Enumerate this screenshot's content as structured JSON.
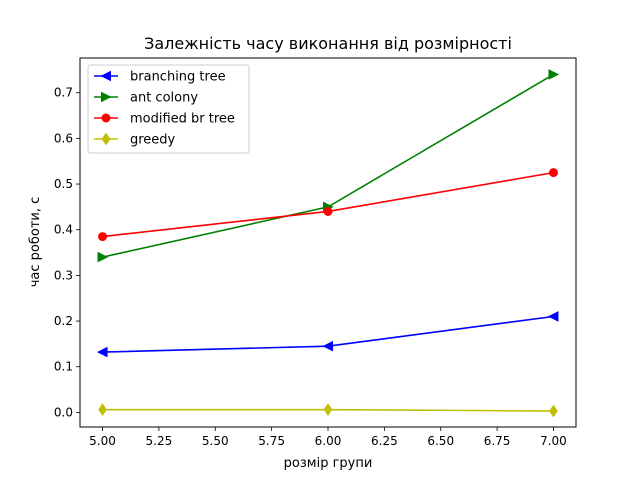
{
  "chart_data": {
    "type": "line",
    "title": "Залежність часу виконання від розмірності",
    "xlabel": "розмір групи",
    "ylabel": "час роботи, с",
    "xlim": [
      4.9,
      7.1
    ],
    "ylim": [
      -0.032,
      0.776
    ],
    "xticks": [
      5.0,
      5.25,
      5.5,
      5.75,
      6.0,
      6.25,
      6.5,
      6.75,
      7.0
    ],
    "xtick_labels": [
      "5.00",
      "5.25",
      "5.50",
      "5.75",
      "6.00",
      "6.25",
      "6.50",
      "6.75",
      "7.00"
    ],
    "yticks": [
      0.0,
      0.1,
      0.2,
      0.3,
      0.4,
      0.5,
      0.6,
      0.7
    ],
    "ytick_labels": [
      "0.0",
      "0.1",
      "0.2",
      "0.3",
      "0.4",
      "0.5",
      "0.6",
      "0.7"
    ],
    "grid": false,
    "legend_position": "top-left",
    "x": [
      5,
      6,
      7
    ],
    "series": [
      {
        "name": "branching tree",
        "values": [
          0.132,
          0.145,
          0.21
        ],
        "color": "#0000ff",
        "marker": "triangle-left"
      },
      {
        "name": "ant colony",
        "values": [
          0.34,
          0.45,
          0.74
        ],
        "color": "#008000",
        "marker": "triangle-right"
      },
      {
        "name": "modified br tree",
        "values": [
          0.385,
          0.44,
          0.525
        ],
        "color": "#ff0000",
        "marker": "circle"
      },
      {
        "name": "greedy",
        "values": [
          0.006,
          0.006,
          0.003
        ],
        "color": "#bfbf00",
        "marker": "diamond"
      }
    ]
  }
}
